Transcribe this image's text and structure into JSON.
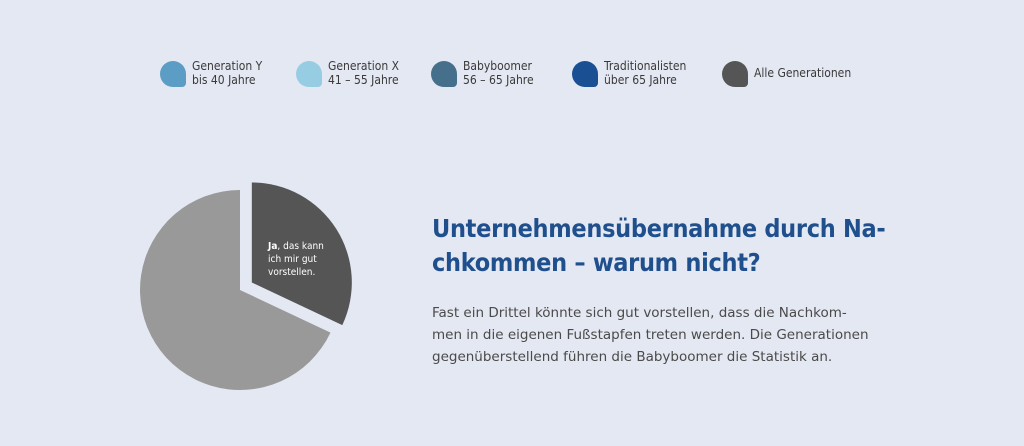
{
  "legend": [
    {
      "line1": "Generation Y",
      "line2": "bis 40 Jahre",
      "color": "#5b9dc4"
    },
    {
      "line1": "Generation X",
      "line2": "41 – 55 Jahre",
      "color": "#97cde3"
    },
    {
      "line1": "Babyboomer",
      "line2": "56 – 65 Jahre",
      "color": "#456f8b"
    },
    {
      "line1": "Traditionalisten",
      "line2": "über 65 Jahre",
      "color": "#1b4f93"
    },
    {
      "line1": "Alle Generationen",
      "line2": "",
      "color": "#555555"
    }
  ],
  "chart_data": {
    "type": "pie",
    "slices": [
      {
        "label": "Ja, das kann ich mir gut vorstellen.",
        "value": 32,
        "color": "#555555",
        "exploded": true
      },
      {
        "label": "",
        "value": 68,
        "color": "#999999",
        "exploded": false
      }
    ]
  },
  "pie_label": {
    "bold": "Ja",
    "rest1": ", das kann",
    "rest2": "ich mir gut",
    "rest3": "vorstellen."
  },
  "heading": {
    "line1": "Unternehmensübernahme durch Na-",
    "line2": "chkommen – warum nicht?"
  },
  "body": {
    "line1": "Fast ein Drittel könnte sich gut vorstellen, dass die Nachkom-",
    "line2": "men in die eigenen Fußstapfen treten werden. Die Generationen",
    "line3": "gegenüberstellend führen die Babyboomer die Statistik an."
  }
}
